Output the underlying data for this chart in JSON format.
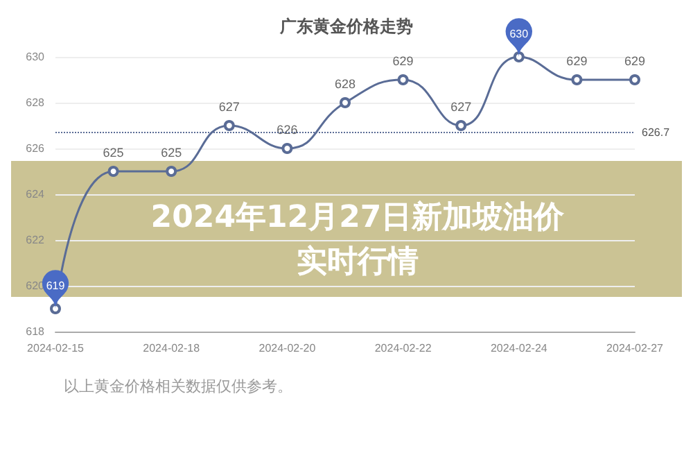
{
  "chart_data": {
    "type": "line",
    "title": "广东黄金价格走势",
    "categories": [
      "2024-02-15",
      null,
      "2024-02-18",
      null,
      "2024-02-20",
      null,
      "2024-02-22",
      null,
      "2024-02-24",
      null,
      "2024-02-27"
    ],
    "series": [
      {
        "color": "#5a6c96",
        "values": [
          619,
          625,
          625,
          627,
          626,
          628,
          629,
          627,
          630,
          629,
          629
        ]
      }
    ],
    "ylim": [
      618,
      630
    ],
    "yticks": [
      618,
      620,
      622,
      624,
      626,
      628,
      630
    ],
    "grid": "y",
    "marker": "circle",
    "line_style": "solid",
    "data_labels": true,
    "ref_lines": [
      {
        "axis": "y",
        "value": 626.7,
        "label": "626.7",
        "color": "#5a6c96",
        "line_style": "dotted"
      }
    ],
    "annotations": [
      "2024年12月27日新加坡油价实时行情",
      "以上黄金价格相关数据仅供参考。"
    ]
  }
}
